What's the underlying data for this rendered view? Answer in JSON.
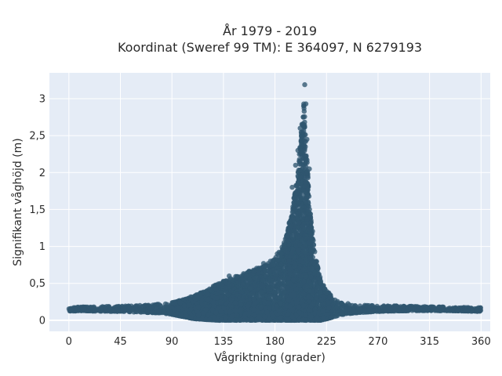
{
  "chart_data": {
    "type": "scatter",
    "title_lines": [
      "År 1979 - 2019",
      "Koordinat (Sweref 99 TM): E 364097, N 6279193"
    ],
    "xlabel": "Vågriktning (grader)",
    "ylabel": "Signifikant våghöjd (m)",
    "xlim": [
      -17,
      368
    ],
    "ylim": [
      -0.15,
      3.35
    ],
    "x_ticks": [
      0,
      45,
      90,
      135,
      180,
      225,
      270,
      315,
      360
    ],
    "x_tick_labels": [
      "0",
      "45",
      "90",
      "135",
      "180",
      "225",
      "270",
      "315",
      "360"
    ],
    "y_ticks": [
      0,
      0.5,
      1,
      1.5,
      2,
      2.5,
      3
    ],
    "y_tick_labels": [
      "0",
      "0,5",
      "1",
      "1,5",
      "2",
      "2,5",
      "3"
    ],
    "grid": true,
    "background": "#e5ecf6",
    "marker_color": "#2f5670",
    "envelope": {
      "x": [
        0,
        10,
        30,
        45,
        60,
        80,
        90,
        100,
        110,
        120,
        130,
        140,
        150,
        160,
        170,
        180,
        185,
        190,
        195,
        200,
        203,
        205,
        207,
        210,
        215,
        220,
        225,
        232,
        240,
        250,
        270,
        300,
        330,
        360
      ],
      "max": [
        0.17,
        0.18,
        0.19,
        0.19,
        0.2,
        0.22,
        0.24,
        0.28,
        0.34,
        0.4,
        0.5,
        0.56,
        0.62,
        0.68,
        0.75,
        0.85,
        0.95,
        1.15,
        1.5,
        2.0,
        2.6,
        3.0,
        2.5,
        1.6,
        0.9,
        0.55,
        0.4,
        0.3,
        0.24,
        0.21,
        0.2,
        0.19,
        0.18,
        0.17
      ],
      "min": [
        0.12,
        0.13,
        0.12,
        0.12,
        0.11,
        0.1,
        0.08,
        0.05,
        0.02,
        0.01,
        0.0,
        0.0,
        0.0,
        0.0,
        0.0,
        0.0,
        0.0,
        0.0,
        0.0,
        0.0,
        0.0,
        0.0,
        0.0,
        0.0,
        0.0,
        0.0,
        0.02,
        0.05,
        0.08,
        0.1,
        0.12,
        0.13,
        0.13,
        0.12
      ]
    },
    "outliers": [
      {
        "x": 206,
        "y": 3.19
      },
      {
        "x": 207,
        "y": 2.93
      },
      {
        "x": 205,
        "y": 2.9
      },
      {
        "x": 204,
        "y": 2.55
      },
      {
        "x": 208,
        "y": 2.45
      },
      {
        "x": 195,
        "y": 1.8
      },
      {
        "x": 198,
        "y": 2.1
      },
      {
        "x": 202,
        "y": 2.6
      },
      {
        "x": 200,
        "y": 2.3
      },
      {
        "x": 210,
        "y": 2.05
      },
      {
        "x": 213,
        "y": 1.1
      },
      {
        "x": 155,
        "y": 0.6
      },
      {
        "x": 140,
        "y": 0.6
      },
      {
        "x": 170,
        "y": 0.77
      },
      {
        "x": 182,
        "y": 0.9
      },
      {
        "x": 188,
        "y": 1.05
      }
    ],
    "n_points": 7000
  }
}
